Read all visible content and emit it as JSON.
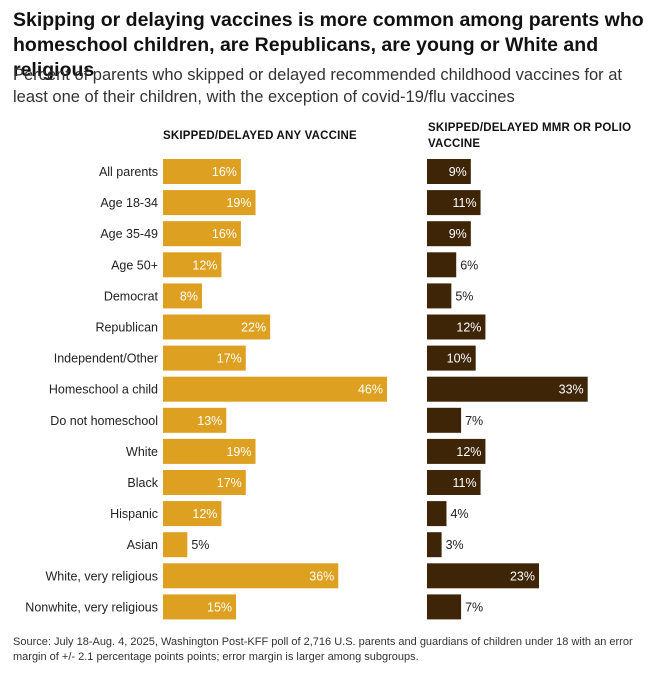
{
  "title": "Skipping or delaying vaccines is more common among parents who homeschool children, are Republicans, are young or White and religious",
  "subtitle": "Percent of parents who skipped or delayed recommended childhood vaccines for at least one of their children, with the exception of covid-19/flu vaccines",
  "source": "Source: July 18-Aug. 4, 2025, Washington Post-KFF poll of 2,716 U.S. parents and guardians of children under 18 with an error margin of +/- 2.1 percentage points points; error margin is larger among subgroups.",
  "colors": {
    "any": "#DDA021",
    "mmr": "#3E2508"
  },
  "chart_data": {
    "type": "bar",
    "orientation": "horizontal",
    "unit": "%",
    "categories": [
      "All parents",
      "Age 18-34",
      "Age 35-49",
      "Age 50+",
      "Democrat",
      "Republican",
      "Independent/Other",
      "Homeschool a child",
      "Do not homeschool",
      "White",
      "Black",
      "Hispanic",
      "Asian",
      "White, very religious",
      "Nonwhite, very religious"
    ],
    "series": [
      {
        "name": "SKIPPED/DELAYED ANY VACCINE",
        "values": [
          16,
          19,
          16,
          12,
          8,
          22,
          17,
          46,
          13,
          19,
          17,
          12,
          5,
          36,
          15
        ]
      },
      {
        "name": "SKIPPED/DELAYED MMR OR POLIO VACCINE",
        "values": [
          9,
          11,
          9,
          6,
          5,
          12,
          10,
          33,
          7,
          12,
          11,
          4,
          3,
          23,
          7
        ]
      }
    ],
    "xlim": [
      0,
      46
    ]
  }
}
